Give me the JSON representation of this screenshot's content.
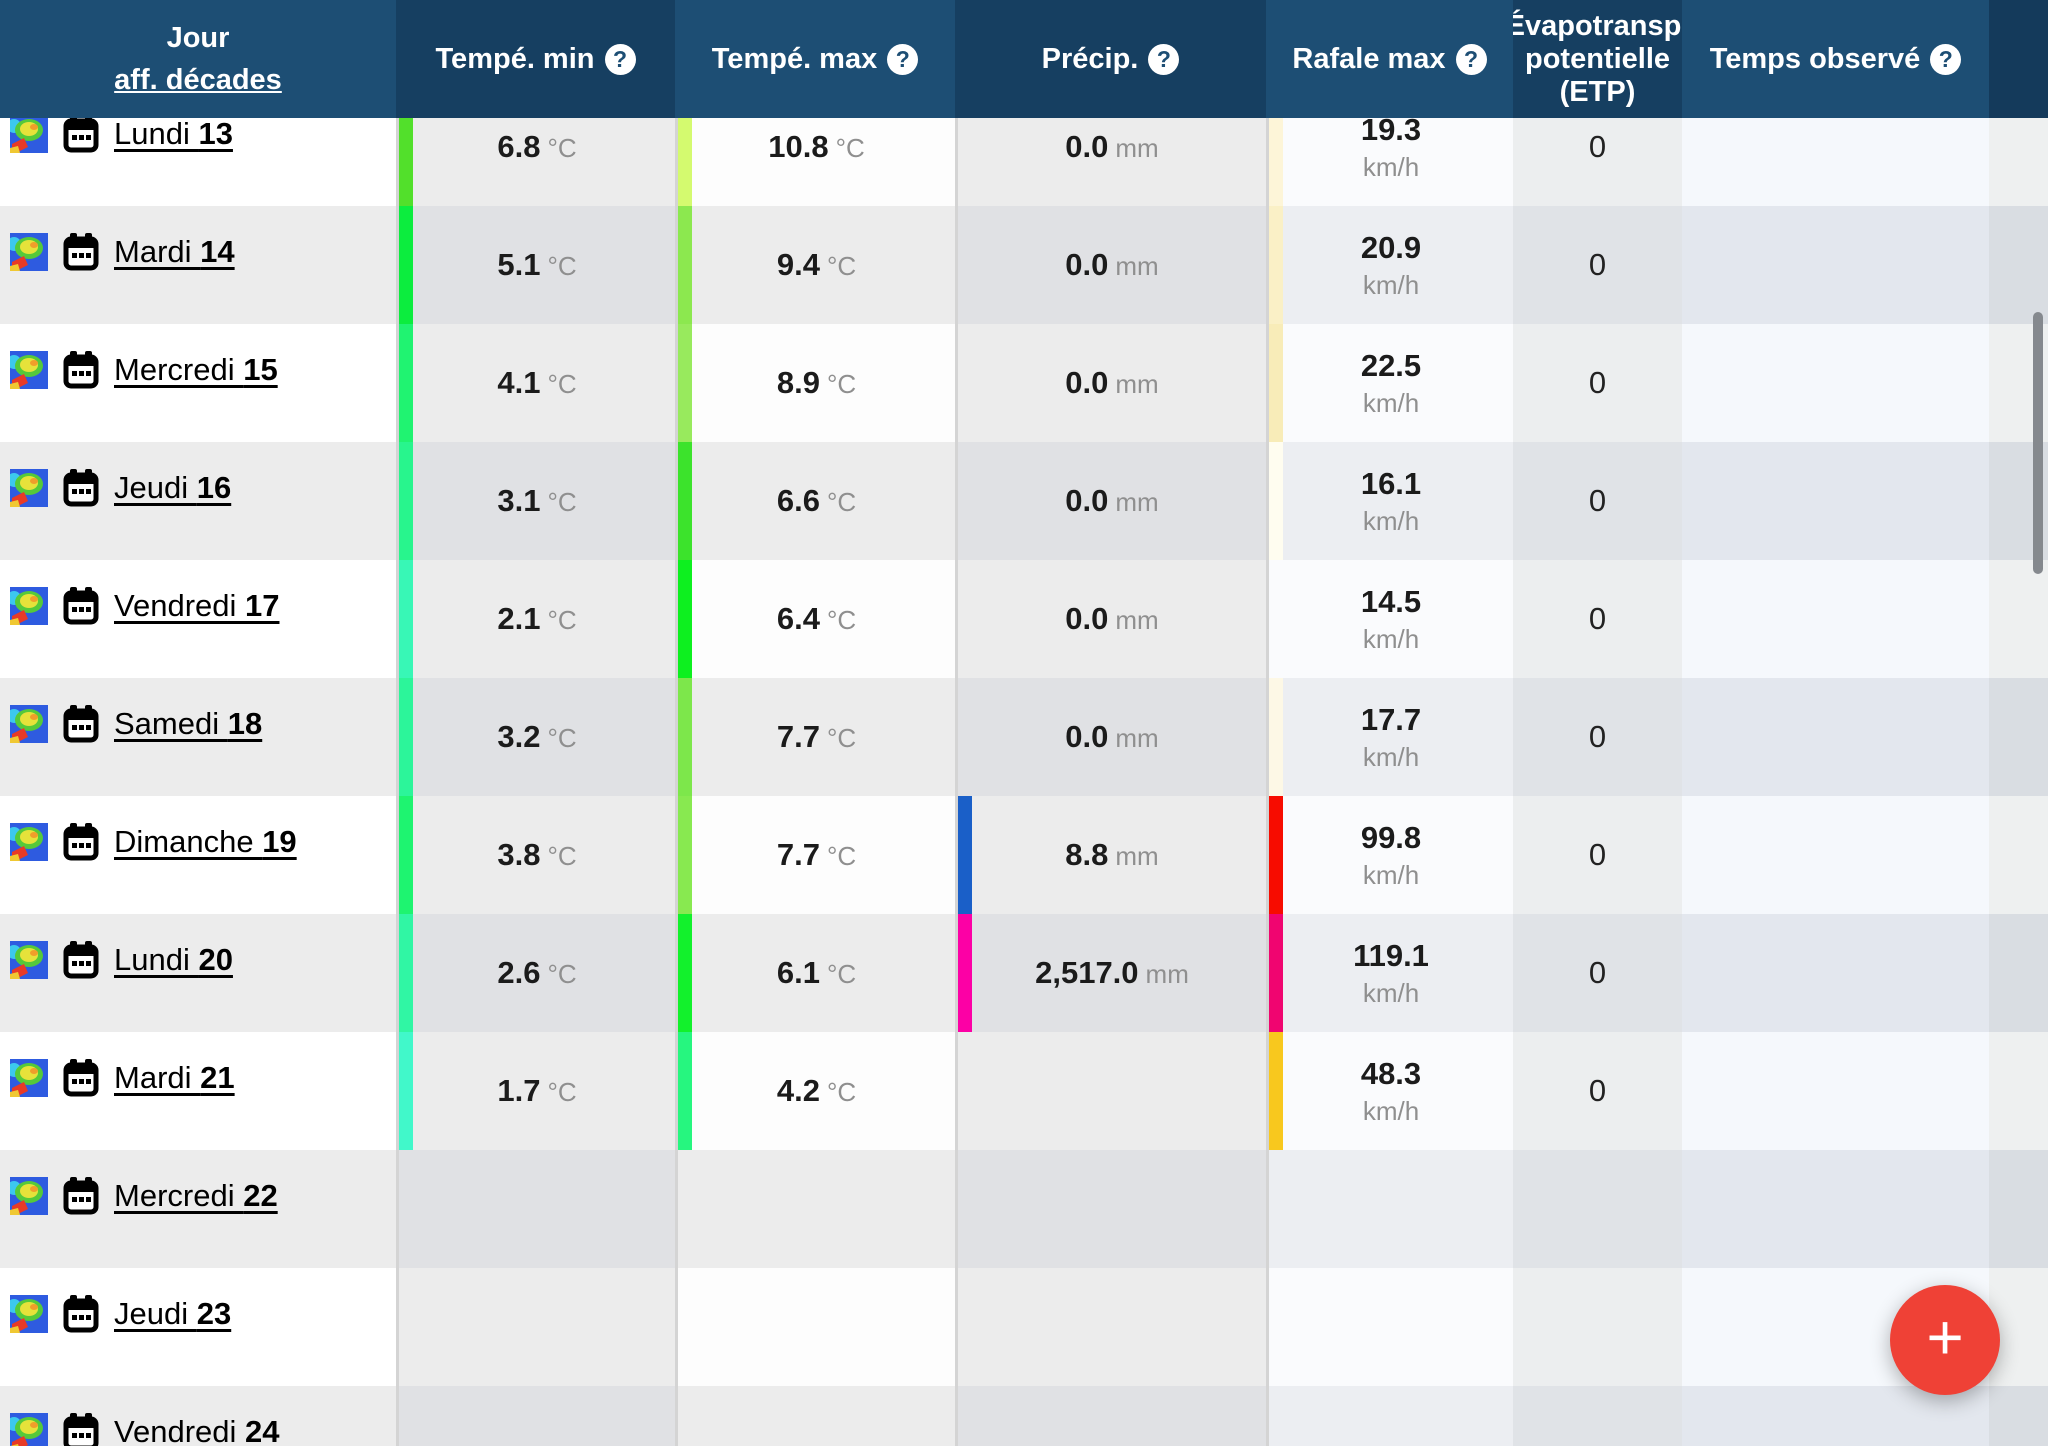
{
  "header": {
    "jour_label": "Jour",
    "jour_link": "aff. décades",
    "help_glyph": "?",
    "tmin_label": "Tempé. min",
    "tmax_label": "Tempé. max",
    "precip_label": "Précip.",
    "rafale_label": "Rafale max",
    "etp_lines": [
      "Évapotranspi",
      "potentielle",
      "(ETP)"
    ],
    "observe_label": "Temps observé"
  },
  "units": {
    "temperature": "°C",
    "precipitation": "mm",
    "wind": "km/h"
  },
  "rows": [
    {
      "day": "Lundi",
      "date": "13",
      "tmin": "6.8",
      "tmax": "10.8",
      "precip": "0.0",
      "rafale": "19.3",
      "etp": "0",
      "observe": "",
      "bars": {
        "tmin": "#52e02b",
        "tmax": "#d4fa6f",
        "precip": null,
        "rafale": "#fdf5d8"
      }
    },
    {
      "day": "Mardi",
      "date": "14",
      "tmin": "5.1",
      "tmax": "9.4",
      "precip": "0.0",
      "rafale": "20.9",
      "etp": "0",
      "observe": "",
      "bars": {
        "tmin": "#0ced3e",
        "tmax": "#8ce84f",
        "precip": null,
        "rafale": "#faf0c6"
      }
    },
    {
      "day": "Mercredi",
      "date": "15",
      "tmin": "4.1",
      "tmax": "8.9",
      "precip": "0.0",
      "rafale": "22.5",
      "etp": "0",
      "observe": "",
      "bars": {
        "tmin": "#20f371",
        "tmax": "#98ea5d",
        "precip": null,
        "rafale": "#f8ecb8"
      }
    },
    {
      "day": "Jeudi",
      "date": "16",
      "tmin": "3.1",
      "tmax": "6.6",
      "precip": "0.0",
      "rafale": "16.1",
      "etp": "0",
      "observe": "",
      "bars": {
        "tmin": "#28f58d",
        "tmax": "#3ce32c",
        "precip": null,
        "rafale": "#fffdf0"
      }
    },
    {
      "day": "Vendredi",
      "date": "17",
      "tmin": "2.1",
      "tmax": "6.4",
      "precip": "0.0",
      "rafale": "14.5",
      "etp": "0",
      "observe": "",
      "bars": {
        "tmin": "#38f7b6",
        "tmax": "#0df01f",
        "precip": null,
        "rafale": null
      }
    },
    {
      "day": "Samedi",
      "date": "18",
      "tmin": "3.2",
      "tmax": "7.7",
      "precip": "0.0",
      "rafale": "17.7",
      "etp": "0",
      "observe": "",
      "bars": {
        "tmin": "#2cf59a",
        "tmax": "#7de74b",
        "precip": null,
        "rafale": "#fdf8e6"
      }
    },
    {
      "day": "Dimanche",
      "date": "19",
      "tmin": "3.8",
      "tmax": "7.7",
      "precip": "8.8",
      "rafale": "99.8",
      "etp": "0",
      "observe": "",
      "bars": {
        "tmin": "#1ef470",
        "tmax": "#88e950",
        "precip": "#1a5fc8",
        "rafale": "#f70c00"
      }
    },
    {
      "day": "Lundi",
      "date": "20",
      "tmin": "2.6",
      "tmax": "6.1",
      "precip": "2,517.0",
      "rafale": "119.1",
      "etp": "0",
      "observe": "",
      "bars": {
        "tmin": "#30f6a4",
        "tmax": "#12f12c",
        "precip": "#fc00a5",
        "rafale": "#f00570"
      }
    },
    {
      "day": "Mardi",
      "date": "21",
      "tmin": "1.7",
      "tmax": "4.2",
      "precip": null,
      "rafale": "48.3",
      "etp": "0",
      "observe": "",
      "bars": {
        "tmin": "#41f8ca",
        "tmax": "#26f67f",
        "precip": null,
        "rafale": "#f8c81e"
      }
    },
    {
      "day": "Mercredi",
      "date": "22",
      "tmin": null,
      "tmax": null,
      "precip": null,
      "rafale": null,
      "etp": "",
      "observe": "",
      "bars": {
        "tmin": null,
        "tmax": null,
        "precip": null,
        "rafale": null
      }
    },
    {
      "day": "Jeudi",
      "date": "23",
      "tmin": null,
      "tmax": null,
      "precip": null,
      "rafale": null,
      "etp": "",
      "observe": "",
      "bars": {
        "tmin": null,
        "tmax": null,
        "precip": null,
        "rafale": null
      }
    },
    {
      "day": "Vendredi",
      "date": "24",
      "tmin": null,
      "tmax": null,
      "precip": null,
      "rafale": null,
      "etp": "",
      "observe": "",
      "bars": {
        "tmin": null,
        "tmax": null,
        "precip": null,
        "rafale": null
      }
    }
  ],
  "fab": {
    "label": "+"
  },
  "colors": {
    "header_light": "#1d4e74",
    "header_dark": "#163f61",
    "header_edge": "#143a5b",
    "fab_red": "#ef4136",
    "row_light": "#ffffff",
    "row_dark": "#ececec"
  }
}
